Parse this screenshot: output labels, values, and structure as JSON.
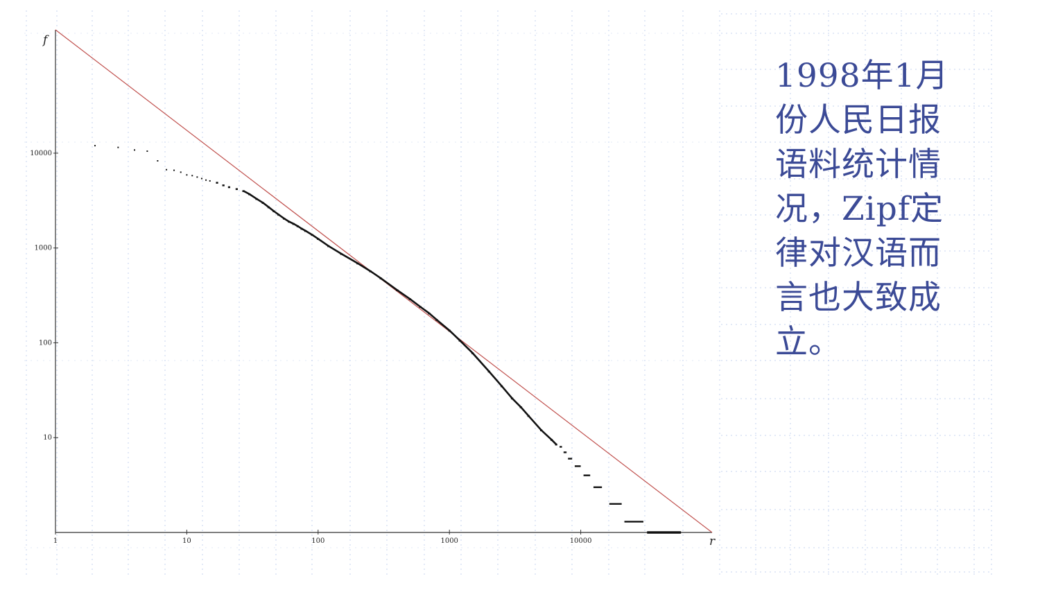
{
  "caption": {
    "lines": [
      "1998年1月",
      "份人民日报",
      "语料统计情",
      "况，Zipf定",
      "律对汉语而",
      "言也大致成",
      "立。"
    ]
  },
  "colors": {
    "caption_text": "#3b4a96",
    "reference_line": "#c0504d",
    "data_points": "#111111",
    "grid": "#c5d3ef"
  },
  "chart_data": {
    "type": "scatter",
    "x_scale": "log",
    "y_scale": "log",
    "xlabel": "r",
    "ylabel": "f",
    "xlim": [
      1,
      100000
    ],
    "ylim": [
      1,
      200000
    ],
    "x_ticks": [
      {
        "value": 1,
        "label": "1"
      },
      {
        "value": 10,
        "label": "10"
      },
      {
        "value": 100,
        "label": "100"
      },
      {
        "value": 1000,
        "label": "1000"
      },
      {
        "value": 10000,
        "label": "10000"
      }
    ],
    "y_ticks": [
      {
        "value": 10,
        "label": "10"
      },
      {
        "value": 100,
        "label": "100"
      },
      {
        "value": 1000,
        "label": "1000"
      },
      {
        "value": 10000,
        "label": "10000"
      }
    ],
    "grid": false,
    "legend": "none",
    "series": [
      {
        "kind": "reference-line",
        "x": [
          1,
          100000
        ],
        "y": [
          200000,
          1
        ]
      },
      {
        "kind": "points",
        "x": [
          2,
          3,
          4,
          5,
          6,
          7,
          8,
          9,
          10,
          11,
          12,
          13,
          14,
          15,
          17,
          19,
          21,
          24,
          27,
          30,
          34,
          38,
          42,
          46,
          50,
          55,
          60,
          65,
          70,
          75,
          80,
          90,
          100,
          120,
          150,
          200,
          250,
          300,
          400,
          500,
          600,
          700,
          800,
          1000,
          1200,
          1500,
          2000,
          2500,
          3000,
          3500,
          4000,
          5000,
          6000,
          6500
        ],
        "y": [
          12000,
          11500,
          10800,
          10500,
          8300,
          6700,
          6600,
          6300,
          5900,
          5800,
          5600,
          5400,
          5200,
          5100,
          4900,
          4600,
          4400,
          4200,
          4000,
          3700,
          3300,
          3000,
          2700,
          2450,
          2250,
          2050,
          1900,
          1800,
          1700,
          1600,
          1520,
          1380,
          1250,
          1050,
          870,
          690,
          570,
          480,
          360,
          290,
          240,
          205,
          175,
          135,
          106,
          78,
          50,
          35,
          26,
          21,
          17,
          12,
          9.5,
          8.5
        ]
      },
      {
        "kind": "plateaus",
        "segments": [
          {
            "y": 8,
            "x_start": 6900,
            "x_end": 7200
          },
          {
            "y": 7,
            "x_start": 7400,
            "x_end": 7800
          },
          {
            "y": 6,
            "x_start": 8000,
            "x_end": 8600
          },
          {
            "y": 5,
            "x_start": 9000,
            "x_end": 10000
          },
          {
            "y": 4,
            "x_start": 10500,
            "x_end": 11800
          },
          {
            "y": 3,
            "x_start": 12500,
            "x_end": 14500
          },
          {
            "y": 2,
            "x_start": 16500,
            "x_end": 20500
          },
          {
            "y": 1.3,
            "x_start": 21500,
            "x_end": 30000
          },
          {
            "y": 1,
            "x_start": 32000,
            "x_end": 58000
          }
        ]
      }
    ]
  }
}
